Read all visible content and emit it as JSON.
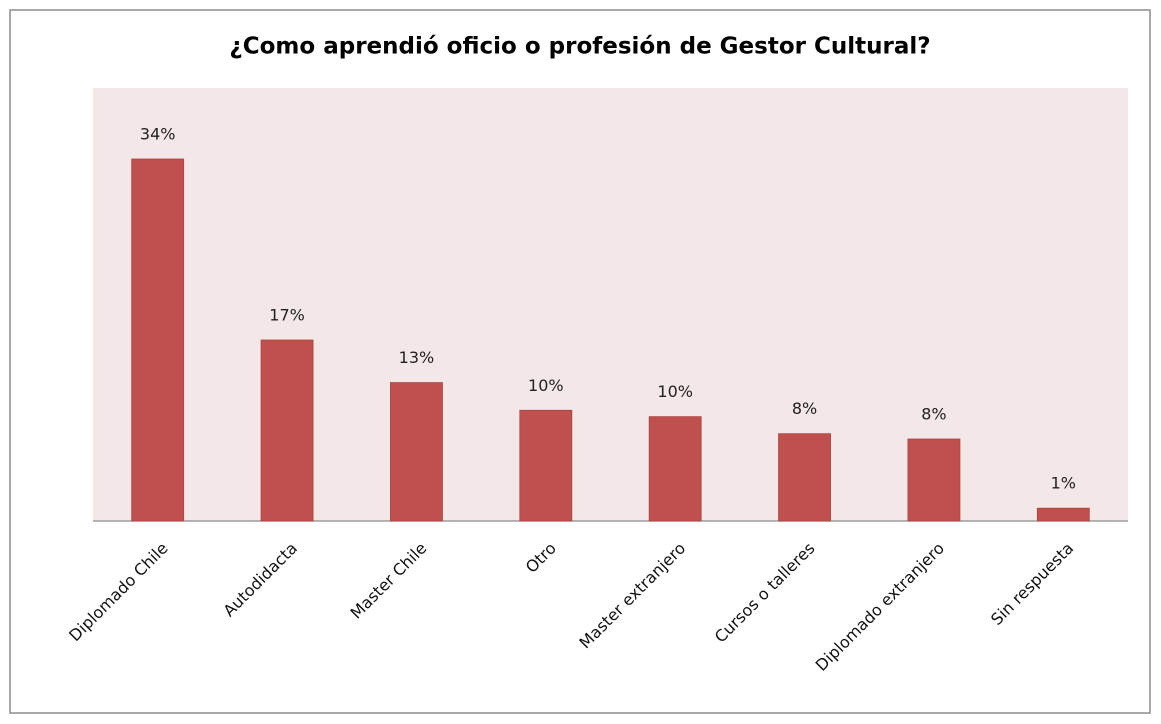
{
  "chart_data": {
    "type": "bar",
    "title": "¿Como aprendió oficio o profesión de Gestor Cultural?",
    "categories": [
      "Diplomado Chile",
      "Autodidacta",
      "Master Chile",
      "Otro",
      "Master extranjero",
      "Cursos o talleres",
      "Diplomado extranjero",
      "Sin respuesta"
    ],
    "values": [
      34,
      17,
      13,
      10.4,
      9.8,
      8.2,
      7.7,
      1.2
    ],
    "value_labels": [
      "34%",
      "17%",
      "13%",
      "10%",
      "10%",
      "8%",
      "8%",
      "1%"
    ],
    "color": "#c0504d"
  }
}
